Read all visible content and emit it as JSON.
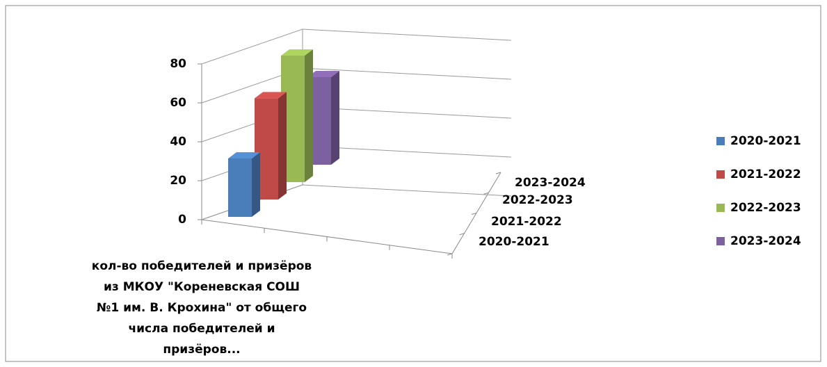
{
  "chart_data": {
    "type": "bar3d",
    "categories": [
      "кол-во победителей и призёров из МКОУ \"Кореневская СОШ №1 им. В. Крохина\" от общего числа победителей и призёров..."
    ],
    "series": [
      {
        "name": "2020-2021",
        "color": "#4a7ebb",
        "values": [
          30
        ]
      },
      {
        "name": "2021-2022",
        "color": "#be4b48",
        "values": [
          52
        ]
      },
      {
        "name": "2022-2023",
        "color": "#98b954",
        "values": [
          65
        ]
      },
      {
        "name": "2023-2024",
        "color": "#7d60a0",
        "values": [
          45
        ]
      }
    ],
    "ylim": [
      0,
      80
    ],
    "yticks": [
      0,
      20,
      40,
      60,
      80
    ],
    "grid": true,
    "legend": "right"
  }
}
